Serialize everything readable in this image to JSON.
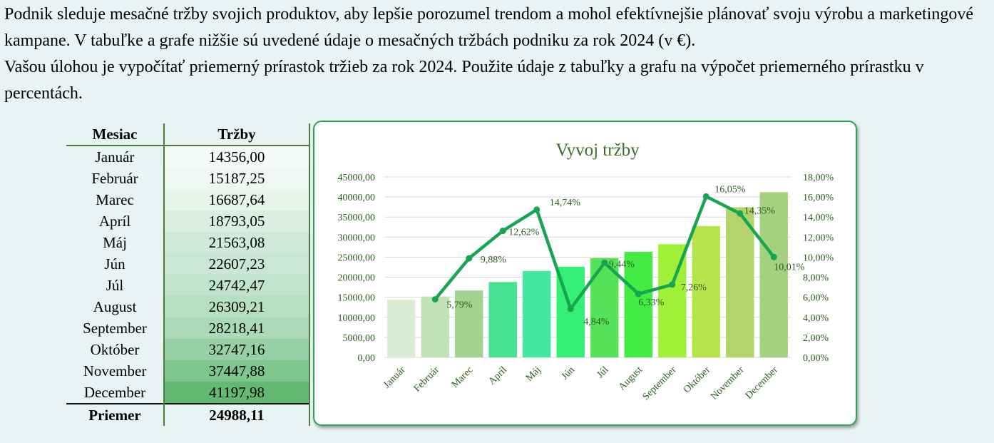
{
  "intro": {
    "p1": "Podnik sleduje mesačné tržby svojich produktov, aby lepšie porozumel trendom a mohol efektívnejšie plánovať svoju výrobu a marketingové kampane. V tabuľke a grafe nižšie sú uvedené údaje o mesačných tržbách podniku za rok 2024 (v €).",
    "p2": "Vašou úlohou je vypočítať priemerný prírastok tržieb za rok 2024. Použite údaje z tabuľky a grafu na výpočet priemerného prírastku v percentách."
  },
  "table": {
    "headers": [
      "Mesiac",
      "Tržby"
    ],
    "rows": [
      {
        "month": "Január",
        "value": "14356,00"
      },
      {
        "month": "Február",
        "value": "15187,25"
      },
      {
        "month": "Marec",
        "value": "16687,64"
      },
      {
        "month": "Apríl",
        "value": "18793,05"
      },
      {
        "month": "Máj",
        "value": "21563,08"
      },
      {
        "month": "Jún",
        "value": "22607,23"
      },
      {
        "month": "Júl",
        "value": "24742,47"
      },
      {
        "month": "August",
        "value": "26309,21"
      },
      {
        "month": "September",
        "value": "28218,41"
      },
      {
        "month": "Október",
        "value": "32747,16"
      },
      {
        "month": "November",
        "value": "37447,88"
      },
      {
        "month": "December",
        "value": "41197,98"
      }
    ],
    "footer": {
      "label": "Priemer",
      "value": "24988,11"
    },
    "cell_colors": [
      "#f7fbf8",
      "#eff8f2",
      "#e6f4ea",
      "#dbefe1",
      "#cfeadb",
      "#c9e7d4",
      "#c1e4cc",
      "#b7dfc2",
      "#acd9b8",
      "#98d0a5",
      "#7fc58e",
      "#63b874"
    ]
  },
  "chart_data": {
    "type": "bar",
    "title": "Vyvoj tržby",
    "categories": [
      "Január",
      "Február",
      "Marec",
      "Apríl",
      "Máj",
      "Jún",
      "Júl",
      "August",
      "September",
      "Október",
      "November",
      "December"
    ],
    "series": [
      {
        "values": [
          14356.0,
          15187.25,
          16687.64,
          18793.05,
          21563.08,
          22607.23,
          24742.47,
          26309.21,
          28218.41,
          32747.16,
          37447.88,
          41197.98
        ],
        "colors": [
          "#dcedd5",
          "#c3e1b6",
          "#a3d18e",
          "#47e291",
          "#45e7a0",
          "#36ef77",
          "#55e25a",
          "#43eb43",
          "#a0ef39",
          "#b8e44b",
          "#b2d46a",
          "#a5d07f"
        ]
      },
      {
        "values": [
          null,
          5.79,
          9.88,
          12.62,
          14.74,
          4.84,
          9.44,
          6.33,
          7.26,
          16.05,
          14.35,
          10.01
        ],
        "labels": [
          "",
          "5,79%",
          "9,88%",
          "12,62%",
          "14,74%",
          "4,84%",
          "9,44%",
          "6,33%",
          "7,26%",
          "16,05%",
          "14,35%",
          "10,01%"
        ],
        "color": "#17a550",
        "type": "line"
      }
    ],
    "y_left": {
      "min": 0,
      "max": 45000,
      "step": 5000,
      "ticks": [
        "0,00",
        "5000,00",
        "10000,00",
        "15000,00",
        "20000,00",
        "25000,00",
        "30000,00",
        "35000,00",
        "40000,00",
        "45000,00"
      ]
    },
    "y_right": {
      "min": 0,
      "max": 18,
      "step": 2,
      "ticks": [
        "0,00%",
        "2,00%",
        "4,00%",
        "6,00%",
        "8,00%",
        "10,00%",
        "12,00%",
        "14,00%",
        "16,00%",
        "18,00%"
      ]
    },
    "grid": true,
    "legend": "none"
  }
}
